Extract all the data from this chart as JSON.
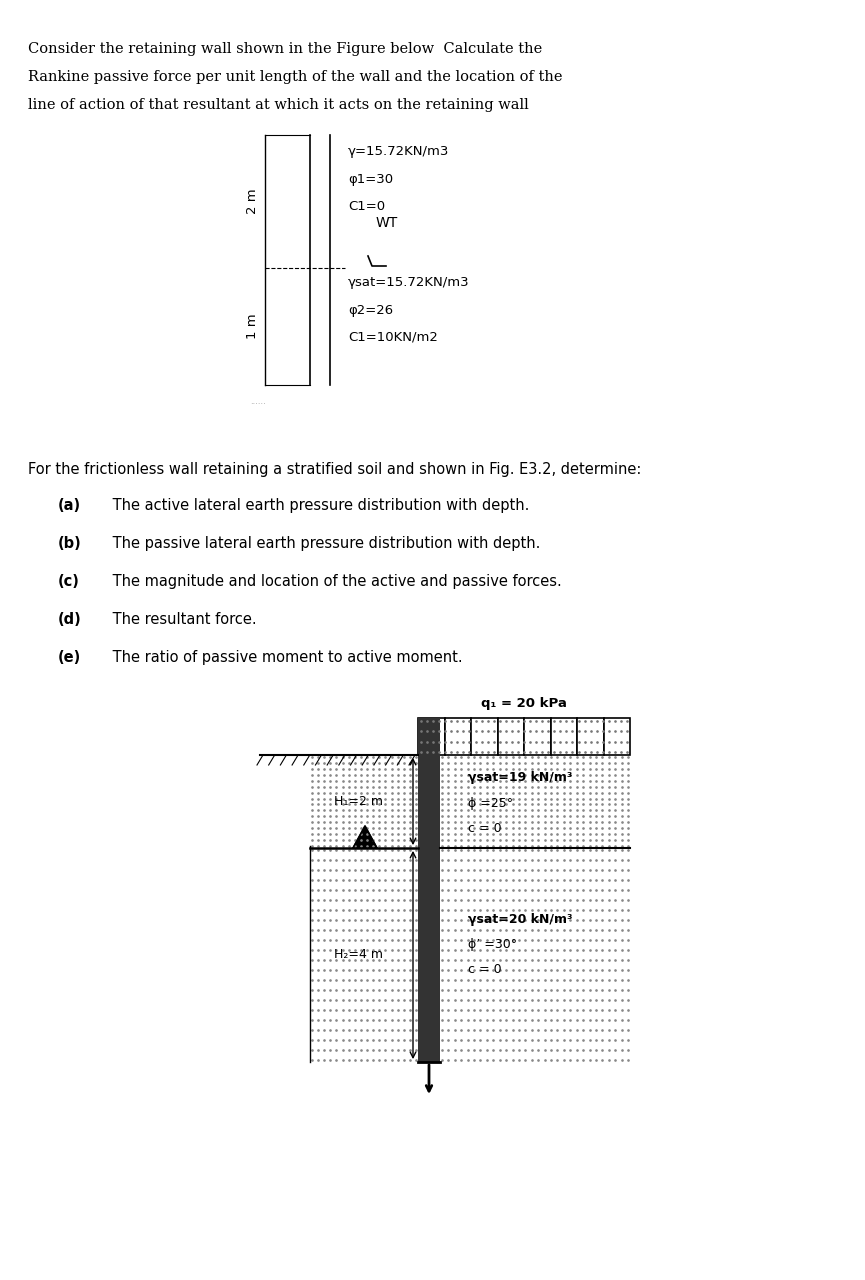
{
  "background_color": "#ffffff",
  "page_width": 8.65,
  "page_height": 12.8,
  "problem1_lines": [
    "Consider the retaining wall shown in the Figure below  Calculate the",
    "Rankine passive force per unit length of the wall and the location of the",
    "line of action of that resultant at which it acts on the retaining wall"
  ],
  "fig1": {
    "label_2m": "2 m",
    "label_1m": "1 m",
    "layer1_line1": "γ=15.72KN/m3",
    "layer1_line2": "φ1=30",
    "layer1_line3": "C1=0",
    "wt_label": "WT",
    "layer2_line1": "γsat=15.72KN/m3",
    "layer2_line2": "φ2=26",
    "layer2_line3": "C1=10KN/m2"
  },
  "problem2_intro": "For the frictionless wall retaining a stratified soil and shown in Fig. E3.2, determine:",
  "problem2_items": [
    [
      "(a)",
      " The active lateral earth pressure distribution with depth."
    ],
    [
      "(b)",
      " The passive lateral earth pressure distribution with depth."
    ],
    [
      "(c)",
      " The magnitude and location of the active and passive forces."
    ],
    [
      "(d)",
      " The resultant force."
    ],
    [
      "(e)",
      " The ratio of passive moment to active moment."
    ]
  ],
  "fig2": {
    "surcharge_label": "q₁ = 20 kPa",
    "H1_label": "H₁=2 m",
    "H2_label": "H₂=4 m",
    "l1p1": "γsat=19 kN/m³",
    "l1p2": "ϕ =25°",
    "l1p3": "c = 0",
    "l2p1": "γsat=20 kN/m³",
    "l2p2": "ϕ’ =30°",
    "l2p3": "c = 0"
  }
}
